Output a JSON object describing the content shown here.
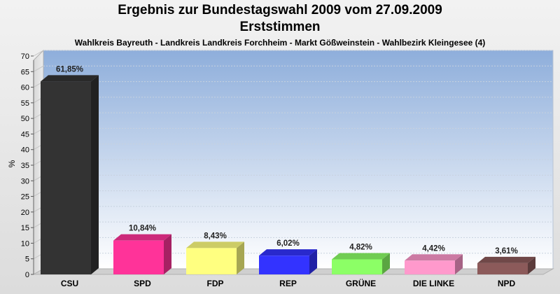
{
  "chart_data": {
    "type": "bar",
    "title": "Ergebnis zur Bundestagswahl 2009 vom 27.09.2009",
    "subtitle": "Erststimmen",
    "caption": "Wahlkreis Bayreuth - Landkreis Landkreis Forchheim - Markt Gößweinstein - Wahlbezirk Kleingesee (4)",
    "ylabel": "%",
    "ylim": [
      0,
      70
    ],
    "yticks": [
      0,
      5,
      10,
      15,
      20,
      25,
      30,
      35,
      40,
      45,
      50,
      55,
      60,
      65,
      70
    ],
    "categories": [
      "CSU",
      "SPD",
      "FDP",
      "REP",
      "GRÜNE",
      "DIE LINKE",
      "NPD"
    ],
    "values": [
      61.85,
      10.84,
      8.43,
      6.02,
      4.82,
      4.42,
      3.61
    ],
    "value_labels": [
      "61,85%",
      "10,84%",
      "8,43%",
      "6,02%",
      "4,82%",
      "4,42%",
      "3,61%"
    ],
    "colors": [
      "#333333",
      "#ff3399",
      "#ffff80",
      "#3333ff",
      "#8cff66",
      "#ff99cc",
      "#8c5a5a"
    ],
    "grid": true,
    "legend": "none"
  }
}
